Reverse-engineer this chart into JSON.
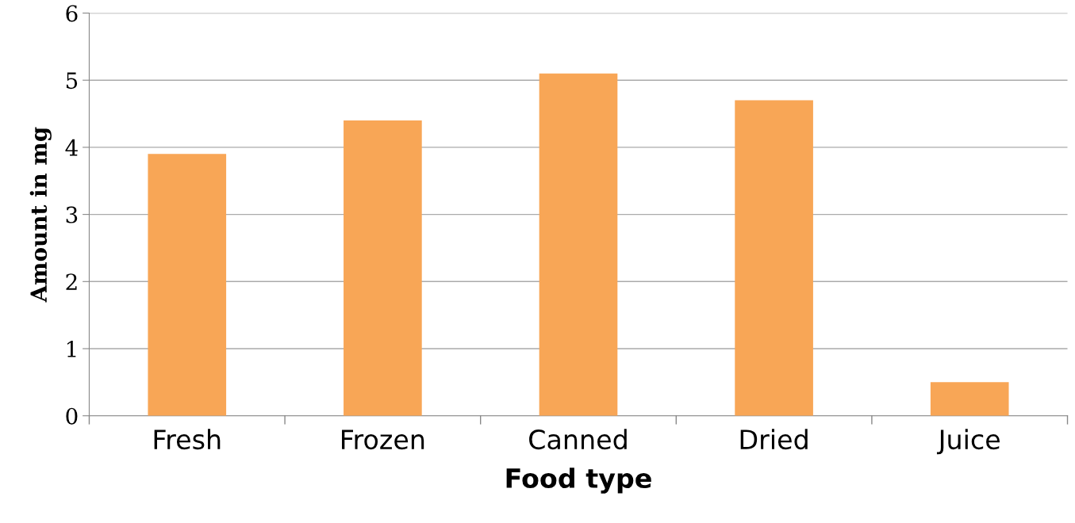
{
  "chart_data": {
    "type": "bar",
    "xlabel": "Food type",
    "ylabel": "Amount in mg",
    "categories": [
      "Fresh",
      "Frozen",
      "Canned",
      "Dried",
      "Juice"
    ],
    "values": [
      3.9,
      4.4,
      5.1,
      4.7,
      0.5
    ],
    "color": "#f8a656",
    "ylim": [
      0,
      6
    ],
    "yticks": [
      0,
      1,
      2,
      3,
      4,
      5,
      6
    ],
    "grid": "y",
    "legend": false
  }
}
